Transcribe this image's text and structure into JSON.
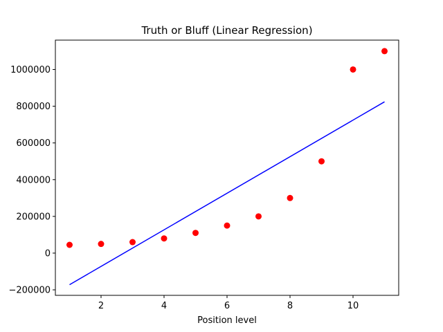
{
  "chart_data": {
    "type": "scatter",
    "title": "Truth or Bluff (Linear Regression)",
    "xlabel": "Position level",
    "ylabel": "",
    "xlim": [
      0.55,
      11.45
    ],
    "ylim": [
      -230000,
      1160000
    ],
    "x_ticks": [
      2,
      4,
      6,
      8,
      10
    ],
    "y_ticks": [
      -200000,
      0,
      200000,
      400000,
      600000,
      800000,
      1000000
    ],
    "grid": false,
    "series": [
      {
        "kind": "scatter",
        "color": "#ff0000",
        "x": [
          1,
          2,
          3,
          4,
          5,
          6,
          7,
          8,
          9,
          10,
          11
        ],
        "y": [
          45000,
          50000,
          60000,
          80000,
          110000,
          150000,
          200000,
          300000,
          500000,
          1000000,
          1100000
        ]
      },
      {
        "kind": "line",
        "color": "#0000ff",
        "x": [
          1,
          11
        ],
        "y": [
          -172000,
          824000
        ]
      }
    ]
  }
}
